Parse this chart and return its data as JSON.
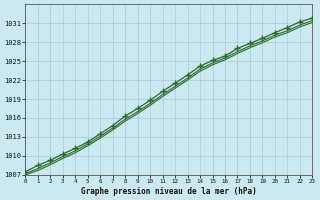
{
  "title": "Graphe pression niveau de la mer (hPa)",
  "bg_color": "#cce8f0",
  "grid_color": "#aacfdc",
  "line_color": "#2d6a2d",
  "x_min": 0,
  "x_max": 23,
  "y_min": 1007,
  "y_max": 1034,
  "y_ticks": [
    1007,
    1010,
    1013,
    1016,
    1019,
    1022,
    1025,
    1028,
    1031
  ],
  "x_ticks": [
    0,
    1,
    2,
    3,
    4,
    5,
    6,
    7,
    8,
    9,
    10,
    11,
    12,
    13,
    14,
    15,
    16,
    17,
    18,
    19,
    20,
    21,
    22,
    23
  ],
  "x_tick_labels": [
    "0",
    "1",
    "2",
    "3",
    "4",
    "5",
    "6",
    "7",
    "8",
    "9",
    "10",
    "11",
    "12",
    "13",
    "14",
    "15",
    "16",
    "17",
    "18",
    "19",
    "20",
    "21",
    "22",
    "23"
  ],
  "line_marker_x": [
    0,
    1,
    2,
    3,
    4,
    5,
    6,
    7,
    8,
    9,
    10,
    11,
    12,
    13,
    14,
    15,
    16,
    17,
    18,
    19,
    20,
    21,
    22,
    23
  ],
  "line_marker_y": [
    1007.5,
    1008.5,
    1009.3,
    1010.3,
    1011.2,
    1012.2,
    1013.5,
    1014.8,
    1016.3,
    1017.5,
    1018.8,
    1020.2,
    1021.5,
    1022.8,
    1024.2,
    1025.1,
    1025.8,
    1027.0,
    1027.8,
    1028.6,
    1029.5,
    1030.3,
    1031.2,
    1031.8
  ],
  "line_smooth1_x": [
    0,
    1,
    2,
    3,
    4,
    5,
    6,
    7,
    8,
    9,
    10,
    11,
    12,
    13,
    14,
    15,
    16,
    17,
    18,
    19,
    20,
    21,
    22,
    23
  ],
  "line_smooth1_y": [
    1007.2,
    1008.0,
    1008.9,
    1009.9,
    1010.8,
    1011.9,
    1013.1,
    1014.4,
    1015.8,
    1017.0,
    1018.3,
    1019.7,
    1021.0,
    1022.3,
    1023.7,
    1024.7,
    1025.5,
    1026.5,
    1027.4,
    1028.2,
    1029.1,
    1029.8,
    1030.7,
    1031.4
  ],
  "line_smooth2_x": [
    0,
    1,
    2,
    3,
    4,
    5,
    6,
    7,
    8,
    9,
    10,
    11,
    12,
    13,
    14,
    15,
    16,
    17,
    18,
    19,
    20,
    21,
    22,
    23
  ],
  "line_smooth2_y": [
    1007.0,
    1007.7,
    1008.6,
    1009.6,
    1010.5,
    1011.6,
    1012.8,
    1014.1,
    1015.5,
    1016.7,
    1018.0,
    1019.4,
    1020.7,
    1022.0,
    1023.4,
    1024.4,
    1025.2,
    1026.2,
    1027.1,
    1027.9,
    1028.8,
    1029.5,
    1030.4,
    1031.1
  ]
}
